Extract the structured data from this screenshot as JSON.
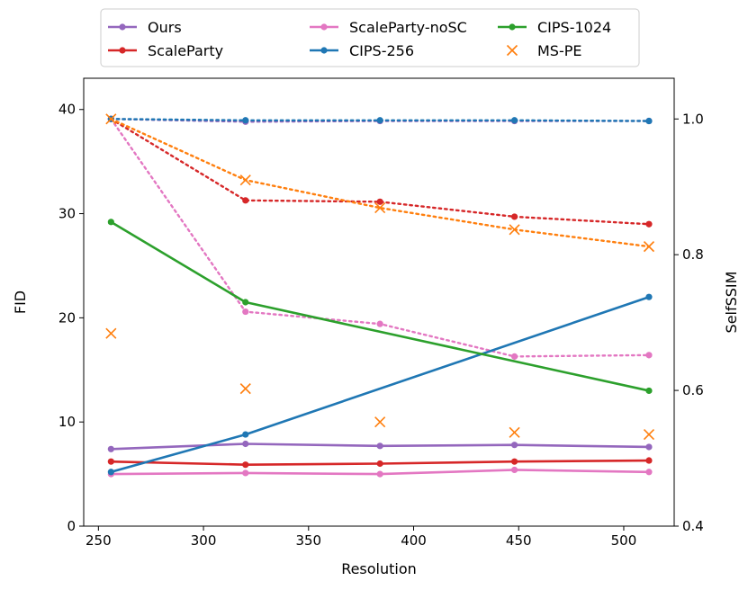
{
  "chart_data": {
    "type": "line",
    "xlabel": "Resolution",
    "ylabel_left": "FID",
    "ylabel_right": "SelfSSIM",
    "xlim": [
      243,
      524
    ],
    "ylim_left": [
      0,
      43
    ],
    "ylim_right": [
      0.4,
      1.06
    ],
    "xticks": [
      250,
      300,
      350,
      400,
      450,
      500
    ],
    "yticks_left": [
      0,
      10,
      20,
      30,
      40
    ],
    "yticks_right": [
      "0.4",
      "0.6",
      "0.8",
      "1.0"
    ],
    "x": [
      256,
      320,
      384,
      448,
      512
    ],
    "legend_position": "top-center",
    "series": [
      {
        "name": "Ours",
        "color": "#9467bd",
        "fid": [
          7.4,
          7.9,
          7.7,
          7.8,
          7.6
        ],
        "selfssim": [
          1.0,
          0.996,
          0.997,
          0.997,
          0.997
        ]
      },
      {
        "name": "ScaleParty",
        "color": "#d62728",
        "fid": [
          6.2,
          5.9,
          6.0,
          6.2,
          6.3
        ],
        "selfssim": [
          1.0,
          0.88,
          0.878,
          0.856,
          0.845
        ]
      },
      {
        "name": "ScaleParty-noSC",
        "color": "#e377c2",
        "fid": [
          5.0,
          5.1,
          5.0,
          5.4,
          5.2
        ],
        "selfssim": [
          1.0,
          0.716,
          0.698,
          0.65,
          0.652
        ]
      },
      {
        "name": "CIPS-256",
        "color": "#1f77b4",
        "fid": [
          5.2,
          8.8,
          null,
          null,
          22.0
        ],
        "selfssim": [
          1.0,
          0.998,
          0.998,
          0.998,
          0.997
        ]
      },
      {
        "name": "CIPS-1024",
        "color": "#2ca02c",
        "fid": [
          29.2,
          21.5,
          null,
          null,
          13.0
        ],
        "selfssim": null
      },
      {
        "name": "MS-PE",
        "color": "#ff7f0e",
        "marker": "x",
        "fid": [
          18.5,
          13.2,
          10.0,
          9.0,
          8.8
        ],
        "selfssim": [
          1.0,
          0.91,
          0.869,
          0.837,
          0.812
        ]
      }
    ]
  }
}
